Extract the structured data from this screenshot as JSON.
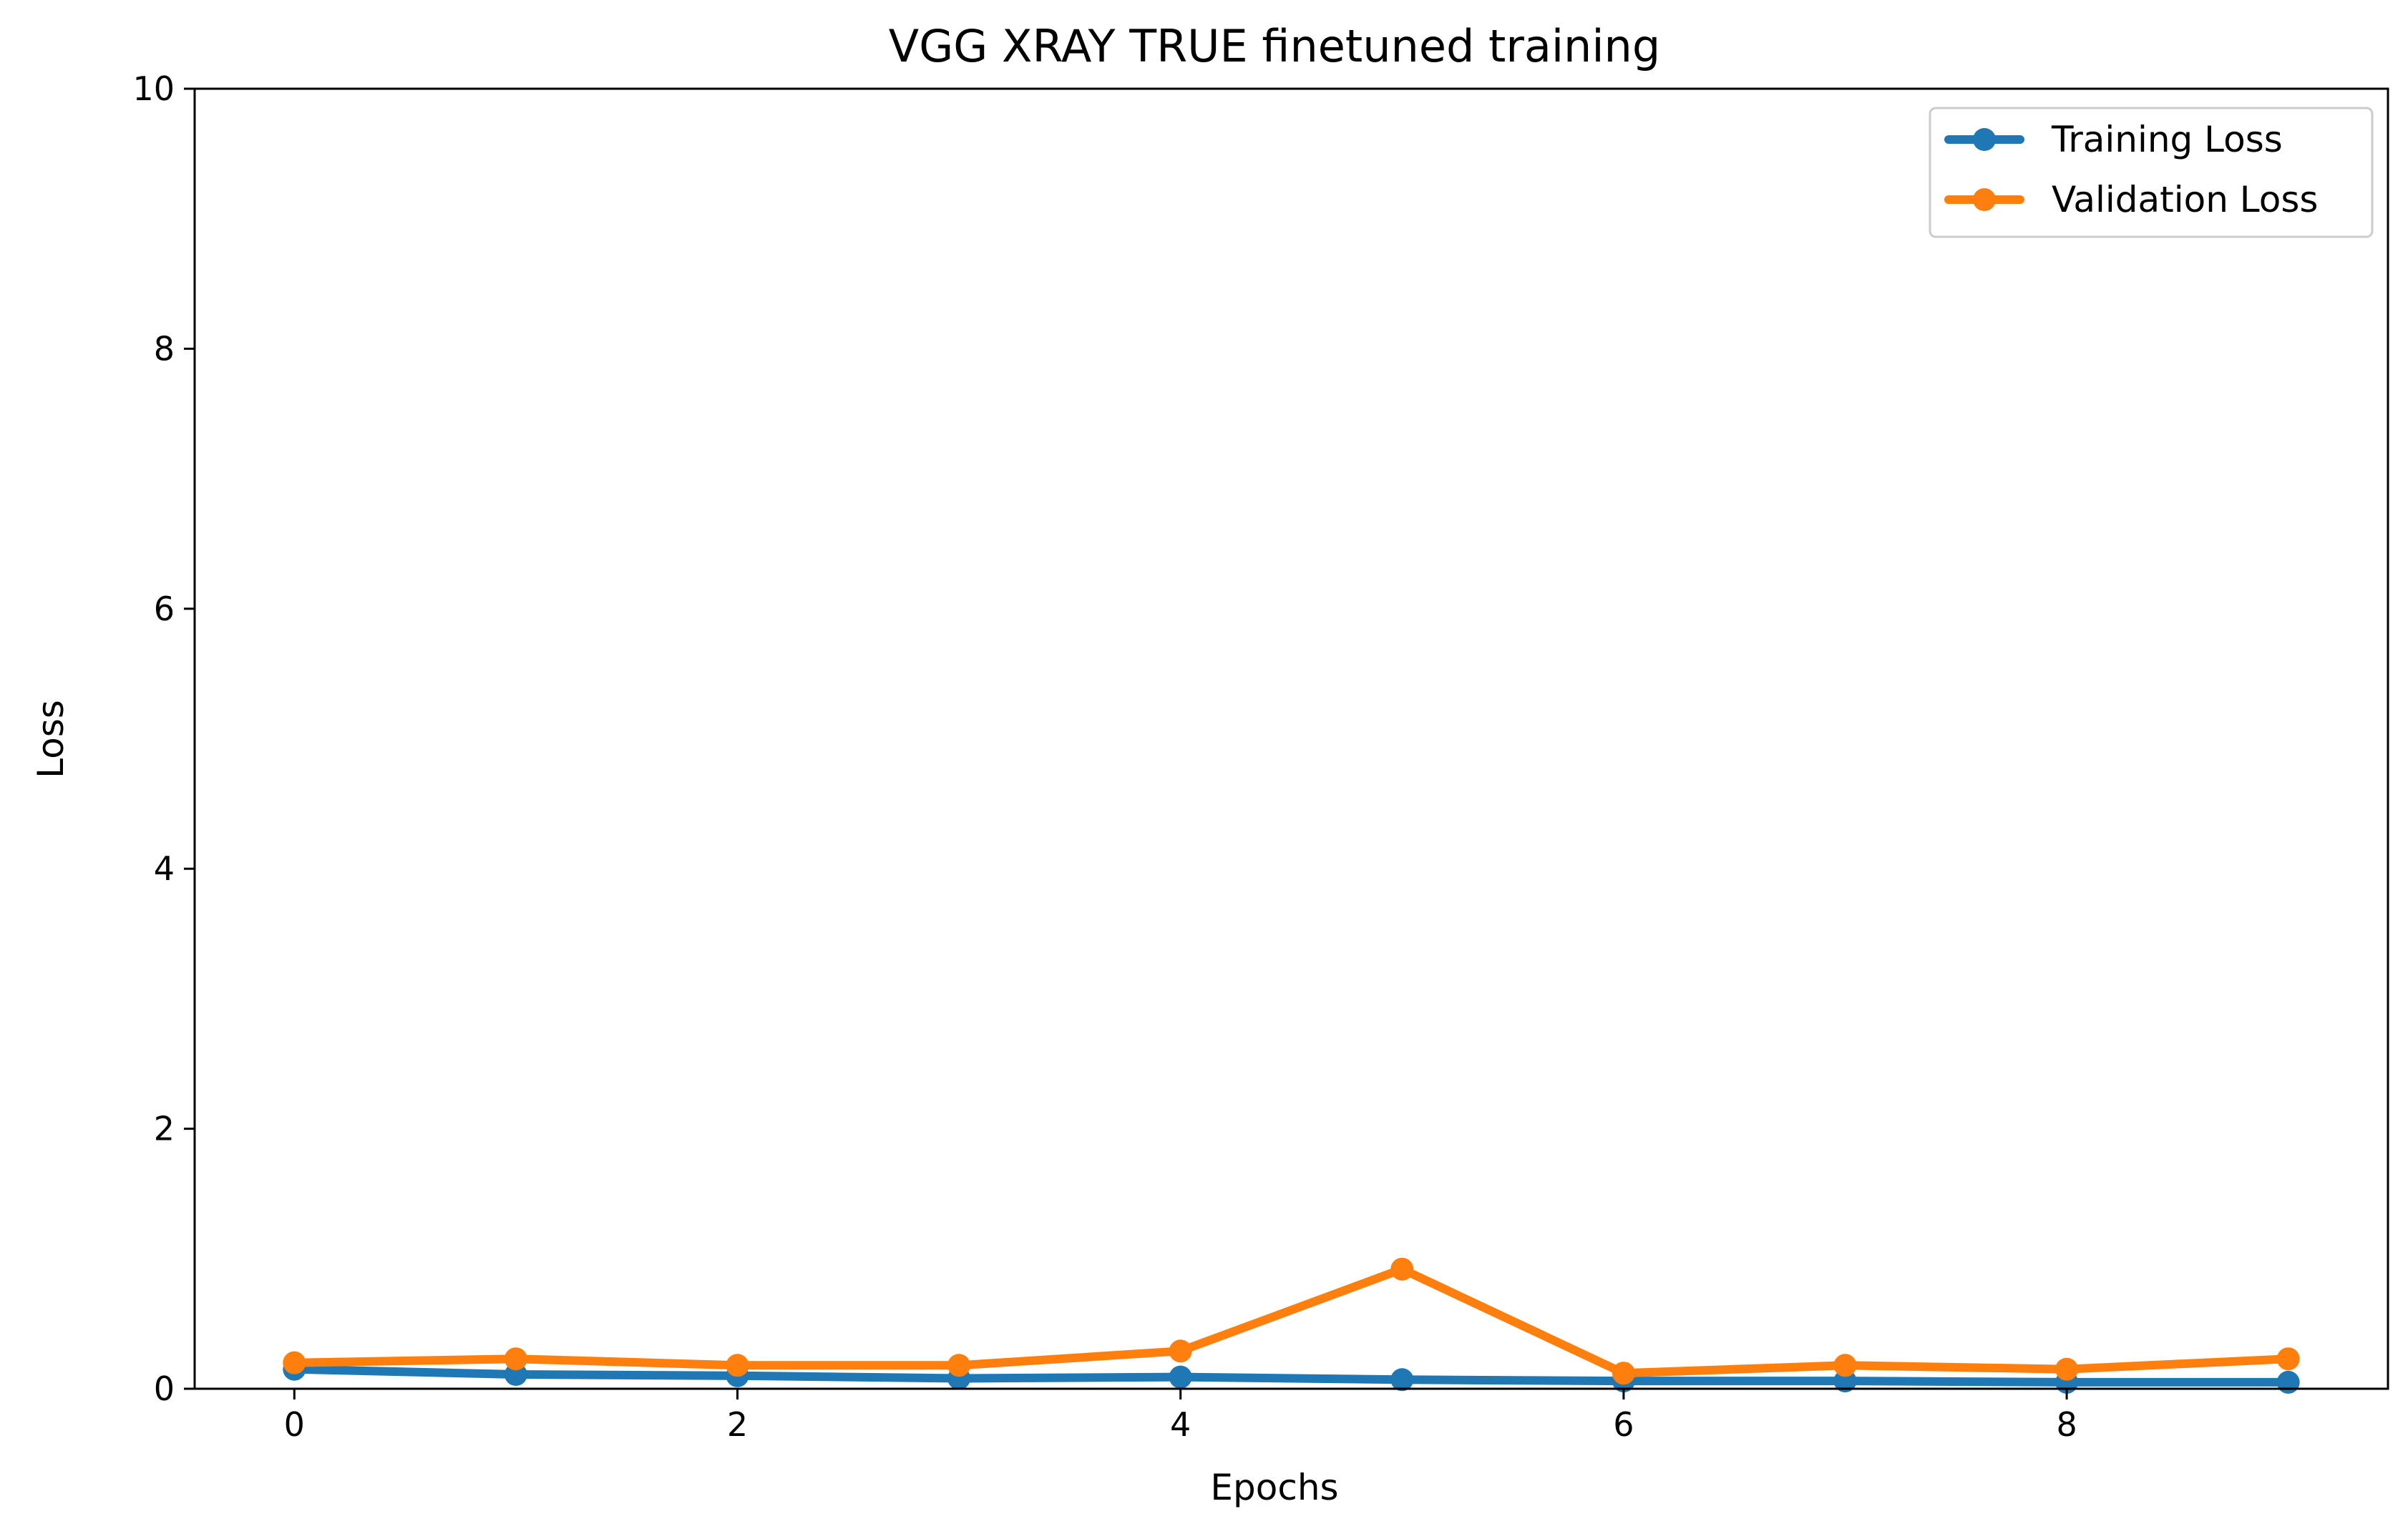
{
  "chart_data": {
    "type": "line",
    "title": "VGG XRAY TRUE finetuned training",
    "xlabel": "Epochs",
    "ylabel": "Loss",
    "x": [
      0,
      1,
      2,
      3,
      4,
      5,
      6,
      7,
      8,
      9
    ],
    "xlim": [
      -0.45,
      9.45
    ],
    "ylim": [
      0,
      10
    ],
    "xticks": [
      0,
      2,
      4,
      6,
      8
    ],
    "yticks": [
      0,
      2,
      4,
      6,
      8,
      10
    ],
    "grid": false,
    "legend_position": "top-right",
    "series": [
      {
        "name": "Training Loss",
        "color": "#1f77b4",
        "marker": "circle",
        "values": [
          0.15,
          0.11,
          0.1,
          0.08,
          0.09,
          0.07,
          0.06,
          0.06,
          0.05,
          0.05
        ]
      },
      {
        "name": "Validation Loss",
        "color": "#ff7f0e",
        "marker": "circle",
        "values": [
          0.2,
          0.23,
          0.18,
          0.18,
          0.29,
          0.92,
          0.12,
          0.18,
          0.15,
          0.23
        ]
      }
    ]
  }
}
